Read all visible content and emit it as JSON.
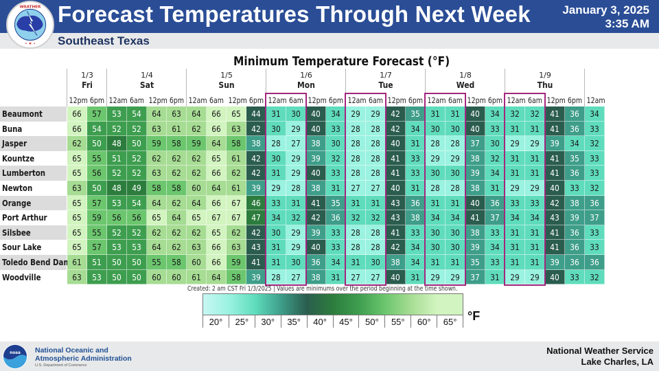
{
  "header": {
    "title": "Forecast Temperatures Through Next Week",
    "date": "January 3, 2025",
    "time": "3:35 AM",
    "region": "Southeast Texas",
    "logo": "nws-logo"
  },
  "footer": {
    "noaa_line1": "National Oceanic and",
    "noaa_line2": "Atmospheric Administration",
    "noaa_line3": "U.S. Department of Commerce",
    "office_line1": "National Weather Service",
    "office_line2": "Lake Charles, LA"
  },
  "note": "Created: 2 am CST Fri 1/3/2025  |  Values are minimums over the period beginning at the time shown.",
  "colors": {
    "header_bg": "#2a4d96",
    "highlight_box": "#a3267e",
    "label_stripe": "#dcdcdc"
  },
  "chart_data": {
    "type": "table",
    "title": "Minimum Temperature Forecast (°F)",
    "days": [
      {
        "date": "1/3",
        "name": "Fri",
        "times": [
          "12pm",
          "6pm"
        ]
      },
      {
        "date": "1/4",
        "name": "Sat",
        "times": [
          "12am",
          "6am",
          "12pm",
          "6pm"
        ]
      },
      {
        "date": "1/5",
        "name": "Sun",
        "times": [
          "12am",
          "6am",
          "12pm",
          "6pm"
        ]
      },
      {
        "date": "1/6",
        "name": "Mon",
        "times": [
          "12am",
          "6am",
          "12pm",
          "6pm"
        ]
      },
      {
        "date": "1/7",
        "name": "Tue",
        "times": [
          "12am",
          "6am",
          "12pm",
          "6pm"
        ]
      },
      {
        "date": "1/8",
        "name": "Wed",
        "times": [
          "12am",
          "6am",
          "12pm",
          "6pm"
        ]
      },
      {
        "date": "1/9",
        "name": "Thu",
        "times": [
          "12am",
          "6am",
          "12pm",
          "6pm"
        ]
      },
      {
        "date": "",
        "name": "",
        "times": [
          "12am"
        ]
      }
    ],
    "highlighted_columns": [
      [
        10,
        11
      ],
      [
        14,
        15
      ],
      [
        18,
        19
      ],
      [
        22,
        23
      ]
    ],
    "rows": [
      {
        "name": "Beaumont",
        "values": [
          66,
          57,
          53,
          54,
          64,
          63,
          64,
          66,
          65,
          44,
          31,
          30,
          40,
          34,
          29,
          29,
          42,
          35,
          31,
          31,
          40,
          34,
          32,
          32,
          41,
          36,
          34
        ]
      },
      {
        "name": "Buna",
        "values": [
          66,
          54,
          52,
          52,
          63,
          61,
          62,
          66,
          63,
          42,
          30,
          29,
          40,
          33,
          28,
          28,
          42,
          34,
          30,
          30,
          40,
          33,
          31,
          31,
          41,
          36,
          33
        ]
      },
      {
        "name": "Jasper",
        "values": [
          62,
          50,
          48,
          50,
          59,
          58,
          59,
          64,
          58,
          38,
          28,
          27,
          38,
          30,
          28,
          28,
          40,
          31,
          28,
          28,
          37,
          30,
          29,
          29,
          39,
          34,
          32
        ]
      },
      {
        "name": "Kountze",
        "values": [
          65,
          55,
          51,
          52,
          62,
          62,
          62,
          65,
          61,
          42,
          30,
          29,
          39,
          32,
          28,
          28,
          41,
          33,
          29,
          29,
          38,
          32,
          31,
          31,
          41,
          35,
          33
        ]
      },
      {
        "name": "Lumberton",
        "values": [
          65,
          56,
          52,
          52,
          63,
          62,
          62,
          66,
          62,
          42,
          31,
          29,
          40,
          33,
          28,
          28,
          41,
          33,
          30,
          30,
          39,
          34,
          31,
          31,
          41,
          36,
          33
        ]
      },
      {
        "name": "Newton",
        "values": [
          63,
          50,
          48,
          49,
          58,
          58,
          60,
          64,
          61,
          39,
          29,
          28,
          38,
          31,
          27,
          27,
          40,
          31,
          28,
          28,
          38,
          31,
          29,
          29,
          40,
          33,
          32
        ]
      },
      {
        "name": "Orange",
        "values": [
          65,
          57,
          53,
          54,
          64,
          62,
          64,
          66,
          67,
          46,
          33,
          31,
          41,
          35,
          31,
          31,
          43,
          36,
          31,
          31,
          40,
          36,
          33,
          33,
          42,
          38,
          36
        ]
      },
      {
        "name": "Port Arthur",
        "values": [
          65,
          59,
          56,
          56,
          65,
          64,
          65,
          67,
          67,
          47,
          34,
          32,
          42,
          36,
          32,
          32,
          43,
          38,
          34,
          34,
          41,
          37,
          34,
          34,
          43,
          39,
          37
        ]
      },
      {
        "name": "Silsbee",
        "values": [
          65,
          55,
          52,
          52,
          62,
          62,
          62,
          65,
          62,
          42,
          30,
          29,
          39,
          33,
          28,
          28,
          41,
          33,
          30,
          30,
          38,
          33,
          31,
          31,
          41,
          36,
          33
        ]
      },
      {
        "name": "Sour Lake",
        "values": [
          65,
          57,
          53,
          53,
          64,
          62,
          63,
          66,
          63,
          43,
          31,
          29,
          40,
          33,
          28,
          28,
          42,
          34,
          30,
          30,
          39,
          34,
          31,
          31,
          41,
          36,
          33
        ]
      },
      {
        "name": "Toledo Bend Dam",
        "values": [
          61,
          51,
          50,
          50,
          55,
          58,
          60,
          66,
          59,
          41,
          31,
          30,
          36,
          34,
          31,
          30,
          38,
          34,
          31,
          31,
          35,
          33,
          31,
          31,
          39,
          36,
          36
        ]
      },
      {
        "name": "Woodville",
        "values": [
          63,
          53,
          50,
          50,
          60,
          60,
          61,
          64,
          58,
          39,
          28,
          27,
          38,
          31,
          27,
          27,
          40,
          31,
          29,
          29,
          37,
          31,
          29,
          29,
          40,
          33,
          32
        ]
      }
    ],
    "legend": {
      "unit": "°F",
      "stops": [
        {
          "label": "20°",
          "color": "#c8f7f3"
        },
        {
          "label": "25°",
          "color": "#9af2e0"
        },
        {
          "label": "30°",
          "color": "#5fdcbc"
        },
        {
          "label": "35°",
          "color": "#3e9e8a"
        },
        {
          "label": "40°",
          "color": "#2b5d4e"
        },
        {
          "label": "45°",
          "color": "#2c7d3d"
        },
        {
          "label": "50°",
          "color": "#3e9e4f"
        },
        {
          "label": "55°",
          "color": "#6cc66e"
        },
        {
          "label": "60°",
          "color": "#a6dc93"
        },
        {
          "label": "65°",
          "color": "#d2f4c0"
        }
      ]
    }
  }
}
